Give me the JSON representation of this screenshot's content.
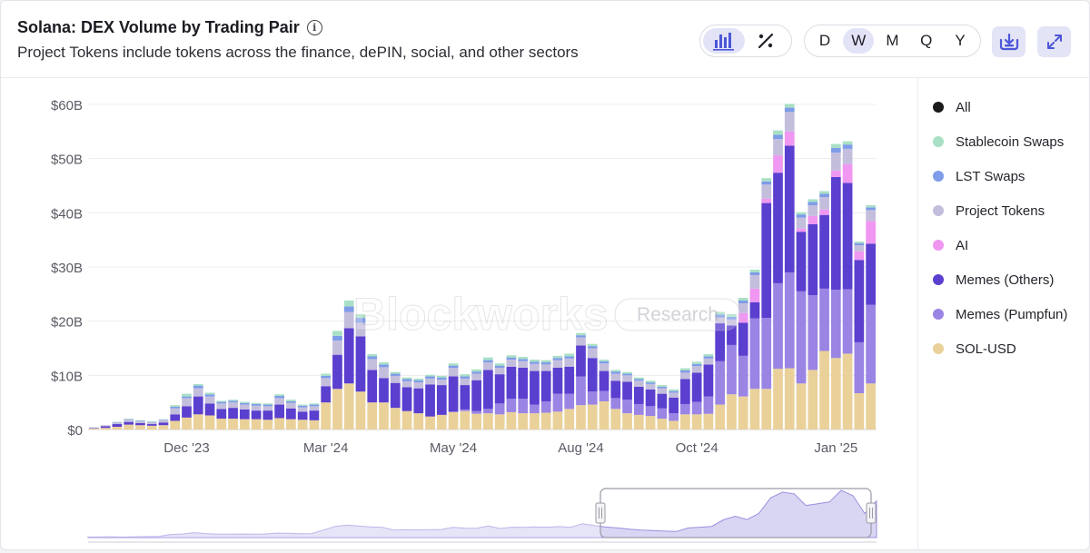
{
  "header": {
    "title": "Solana: DEX Volume by Trading Pair",
    "info_glyph": "i",
    "subtitle": "Project Tokens include tokens across the finance, dePIN, social, and other sectors"
  },
  "toolbar": {
    "chart_types": [
      {
        "name": "bar-chart-icon",
        "active": true
      },
      {
        "name": "percent-icon",
        "active": false
      }
    ],
    "periods": [
      {
        "label": "D",
        "active": false
      },
      {
        "label": "W",
        "active": true
      },
      {
        "label": "M",
        "active": false
      },
      {
        "label": "Q",
        "active": false
      },
      {
        "label": "Y",
        "active": false
      }
    ],
    "download_icon": "download-icon",
    "expand_icon": "expand-icon"
  },
  "watermark": {
    "brand": "Blockworks",
    "tag": "Research"
  },
  "colors": {
    "All": "#1a1a1a",
    "Stablecoin Swaps": "#a9e0c5",
    "LST Swaps": "#7e9ce8",
    "Project Tokens": "#c4bedd",
    "AI": "#ef97f1",
    "Memes (Others)": "#5b3fcf",
    "Memes (Pumpfun)": "#9a84e4",
    "SOL-USD": "#ead19a"
  },
  "legend": [
    {
      "label": "All"
    },
    {
      "label": "Stablecoin Swaps"
    },
    {
      "label": "LST Swaps"
    },
    {
      "label": "Project Tokens"
    },
    {
      "label": "AI"
    },
    {
      "label": "Memes (Others)"
    },
    {
      "label": "Memes (Pumpfun)"
    },
    {
      "label": "SOL-USD"
    }
  ],
  "chart_data": {
    "type": "bar",
    "stacked": true,
    "title": "Solana: DEX Volume by Trading Pair",
    "xlabel": "",
    "ylabel": "",
    "ylim": [
      0,
      60
    ],
    "y_unit": "billion USD",
    "y_ticks": [
      "$0",
      "$10B",
      "$20B",
      "$30B",
      "$40B",
      "$50B",
      "$60B"
    ],
    "x_tick_labels": [
      {
        "label": "Dec '23",
        "at_index": 8
      },
      {
        "label": "Mar '24",
        "at_index": 20
      },
      {
        "label": "May '24",
        "at_index": 31
      },
      {
        "label": "Aug '24",
        "at_index": 42
      },
      {
        "label": "Oct '24",
        "at_index": 52
      },
      {
        "label": "Jan '25",
        "at_index": 64
      }
    ],
    "series_order": [
      "SOL-USD",
      "Memes (Pumpfun)",
      "Memes (Others)",
      "AI",
      "Project Tokens",
      "LST Swaps",
      "Stablecoin Swaps"
    ],
    "series": [
      {
        "name": "SOL-USD",
        "values": [
          0.2,
          0.3,
          0.5,
          0.9,
          0.8,
          0.7,
          0.8,
          1.6,
          2.2,
          2.8,
          2.6,
          2.0,
          2.0,
          1.9,
          1.9,
          1.8,
          2.1,
          1.9,
          1.8,
          1.7,
          5.0,
          7.5,
          8.5,
          7.0,
          5.0,
          5.0,
          4.0,
          3.4,
          3.0,
          2.4,
          2.7,
          3.2,
          3.4,
          2.9,
          3.0,
          2.8,
          3.2,
          3.0,
          3.0,
          3.1,
          3.3,
          3.8,
          4.5,
          4.6,
          5.2,
          3.8,
          3.0,
          2.7,
          2.5,
          2.0,
          1.6,
          2.8,
          2.8,
          2.9,
          4.6,
          6.5,
          6.1,
          7.5,
          7.5,
          11.2,
          11.3,
          8.5,
          11.0,
          14.5,
          13.2,
          14.0,
          6.7,
          8.5
        ]
      },
      {
        "name": "Memes (Pumpfun)",
        "values": [
          0,
          0,
          0,
          0,
          0,
          0,
          0,
          0,
          0,
          0,
          0,
          0,
          0,
          0,
          0,
          0,
          0,
          0,
          0,
          0,
          0,
          0,
          0,
          0,
          0,
          0,
          0,
          0,
          0,
          0,
          0,
          0.1,
          0.3,
          0.5,
          0.8,
          2.0,
          2.5,
          2.7,
          1.6,
          2.1,
          3.3,
          2.8,
          5.3,
          2.4,
          1.9,
          2.0,
          2.5,
          2.0,
          1.8,
          1.9,
          1.4,
          1.9,
          2.3,
          3.2,
          8.0,
          9.1,
          7.5,
          13.0,
          13.1,
          15.8,
          17.7,
          17.0,
          13.8,
          11.5,
          12.6,
          11.9,
          9.4,
          14.5
        ]
      },
      {
        "name": "Memes (Others)",
        "values": [
          0.1,
          0.3,
          0.5,
          0.5,
          0.4,
          0.3,
          0.5,
          1.2,
          2.1,
          3.3,
          2.2,
          1.8,
          2.0,
          1.8,
          1.6,
          1.7,
          2.5,
          2.0,
          1.5,
          1.8,
          3.0,
          6.3,
          10.2,
          10.2,
          6.0,
          4.5,
          4.6,
          4.4,
          4.6,
          5.9,
          5.5,
          6.5,
          4.5,
          5.7,
          7.2,
          5.4,
          5.9,
          5.7,
          6.2,
          5.6,
          4.8,
          5.0,
          5.7,
          6.2,
          3.7,
          3.2,
          3.3,
          3.2,
          3.1,
          2.7,
          2.9,
          4.6,
          5.4,
          5.9,
          7.0,
          3.6,
          6.1,
          3.0,
          21.2,
          20.4,
          23.4,
          11.0,
          13.1,
          13.6,
          20.8,
          19.6,
          15.2,
          11.3
        ]
      },
      {
        "name": "AI",
        "values": [
          0,
          0,
          0,
          0,
          0,
          0,
          0,
          0,
          0,
          0,
          0,
          0,
          0,
          0,
          0,
          0,
          0,
          0,
          0,
          0,
          0,
          0,
          0,
          0,
          0,
          0,
          0,
          0,
          0,
          0,
          0,
          0,
          0,
          0,
          0,
          0,
          0,
          0,
          0,
          0,
          0,
          0,
          0,
          0,
          0,
          0,
          0,
          0,
          0,
          0,
          0,
          0,
          0,
          0,
          0,
          0,
          1.8,
          2.5,
          0.8,
          3.2,
          2.6,
          0.6,
          1.5,
          1.0,
          1.2,
          3.5,
          1.6,
          4.2
        ]
      },
      {
        "name": "Project Tokens",
        "values": [
          0.1,
          0.2,
          0.3,
          0.4,
          0.3,
          0.3,
          0.4,
          1.1,
          1.5,
          1.5,
          1.3,
          1.0,
          1.0,
          0.9,
          0.9,
          0.8,
          1.2,
          1.0,
          0.8,
          0.8,
          1.5,
          2.6,
          3.0,
          2.5,
          2.0,
          2.0,
          1.3,
          1.1,
          1.1,
          1.1,
          1.0,
          1.6,
          1.2,
          1.2,
          1.4,
          1.2,
          1.3,
          1.2,
          1.3,
          1.2,
          1.4,
          1.5,
          1.5,
          1.8,
          1.4,
          1.3,
          1.2,
          1.1,
          1.0,
          1.0,
          0.9,
          1.2,
          1.2,
          1.1,
          1.1,
          1.1,
          1.8,
          2.5,
          2.6,
          3.0,
          3.6,
          2.0,
          2.0,
          2.3,
          3.3,
          2.8,
          1.1,
          2.0
        ]
      },
      {
        "name": "LST Swaps",
        "values": [
          0,
          0,
          0.05,
          0.1,
          0.1,
          0.1,
          0.1,
          0.3,
          0.3,
          0.5,
          0.4,
          0.3,
          0.3,
          0.3,
          0.3,
          0.3,
          0.4,
          0.3,
          0.3,
          0.3,
          0.4,
          0.9,
          1.0,
          0.9,
          0.5,
          0.5,
          0.4,
          0.4,
          0.4,
          0.4,
          0.4,
          0.4,
          0.4,
          0.4,
          0.4,
          0.4,
          0.4,
          0.4,
          0.4,
          0.4,
          0.4,
          0.4,
          0.4,
          0.4,
          0.4,
          0.4,
          0.3,
          0.3,
          0.3,
          0.3,
          0.3,
          0.4,
          0.4,
          0.4,
          0.5,
          0.5,
          0.5,
          0.5,
          0.6,
          0.8,
          0.8,
          0.6,
          0.6,
          0.6,
          0.9,
          0.8,
          0.4,
          0.5
        ]
      },
      {
        "name": "Stablecoin Swaps",
        "values": [
          0,
          0,
          0.05,
          0.1,
          0.1,
          0.1,
          0.1,
          0.3,
          0.5,
          0.3,
          0.3,
          0.2,
          0.2,
          0.2,
          0.2,
          0.2,
          0.3,
          0.3,
          0.2,
          0.2,
          0.4,
          0.9,
          1.1,
          0.7,
          0.4,
          0.4,
          0.3,
          0.3,
          0.3,
          0.3,
          0.3,
          0.4,
          0.4,
          0.4,
          0.5,
          0.4,
          0.4,
          0.4,
          0.4,
          0.4,
          0.4,
          0.5,
          0.4,
          0.4,
          0.3,
          0.3,
          0.3,
          0.3,
          0.3,
          0.3,
          0.3,
          0.4,
          0.4,
          0.4,
          0.5,
          0.5,
          0.5,
          0.5,
          0.6,
          0.8,
          0.7,
          0.4,
          0.5,
          0.5,
          0.7,
          0.6,
          0.3,
          0.4
        ]
      }
    ],
    "navigator_series": [
      0.6,
      0.8,
      0.9,
      0.6,
      0.9,
      1.0,
      1.2,
      3.5,
      4.0,
      5.5,
      4.5,
      3.9,
      3.9,
      4.0,
      3.8,
      4.0,
      5.0,
      4.8,
      4.3,
      4.5,
      8.5,
      12.5,
      14.0,
      13.0,
      12.0,
      11.5,
      8.5,
      8.8,
      8.6,
      9.0,
      9.0,
      11.5,
      10.6,
      10.4,
      13.0,
      10.2,
      11.6,
      11.4,
      12.0,
      11.6,
      12.3,
      11.5,
      15.5,
      13.5,
      11.8,
      10.8,
      9.4,
      8.5,
      7.8,
      7.2,
      6.8,
      10.8,
      11.6,
      12.5,
      20.0,
      24.0,
      20.2,
      27.0,
      44.5,
      51.0,
      49.0,
      36.0,
      38.0,
      40.0,
      53.0,
      47.0,
      27.0,
      41.0
    ]
  }
}
